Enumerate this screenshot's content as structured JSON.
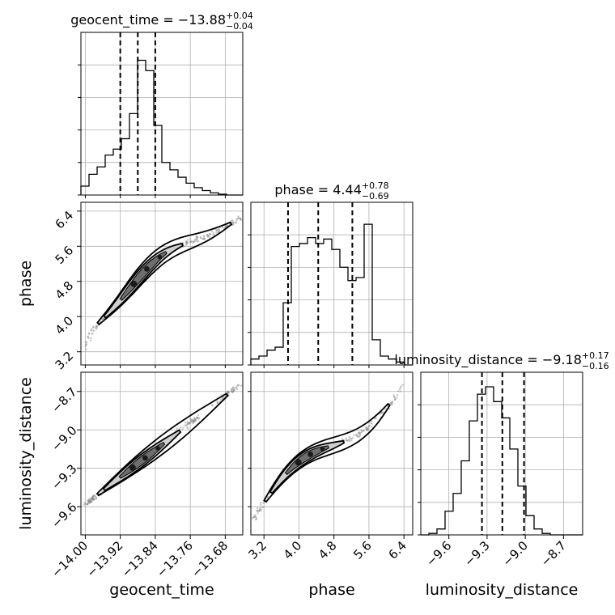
{
  "chart_data": {
    "type": "corner",
    "parameters": [
      "geocent_time",
      "phase",
      "luminosity_distance"
    ],
    "titles": [
      {
        "param": "geocent_time",
        "prefix": "geocent_time = ",
        "median": "−13.88",
        "plus": "+0.04",
        "minus": "−0.04"
      },
      {
        "param": "phase",
        "prefix": "phase = ",
        "median": "4.44",
        "plus": "+0.78",
        "minus": "−0.69"
      },
      {
        "param": "luminosity_distance",
        "prefix": "luminosity_distance = ",
        "median": "−9.18",
        "plus": "+0.17",
        "minus": "−0.16"
      }
    ],
    "axis_labels": {
      "x": [
        "geocent_time",
        "phase",
        "luminosity_distance"
      ],
      "y": [
        "phase",
        "luminosity_distance"
      ]
    },
    "ranges": {
      "geocent_time": [
        -14.01,
        -13.64
      ],
      "phase": [
        2.9,
        6.6
      ],
      "luminosity_distance": [
        -9.82,
        -8.55
      ]
    },
    "ticks": {
      "geocent_time": {
        "values": [
          -14.0,
          -13.92,
          -13.84,
          -13.76,
          -13.68
        ],
        "labels": [
          "−14.00",
          "−13.92",
          "−13.84",
          "−13.76",
          "−13.68"
        ]
      },
      "phase": {
        "values": [
          3.2,
          4.0,
          4.8,
          5.6,
          6.4
        ],
        "labels": [
          "3.2",
          "4.0",
          "4.8",
          "5.6",
          "6.4"
        ]
      },
      "luminosity_distance": {
        "values": [
          -9.6,
          -9.3,
          -9.0,
          -8.7
        ],
        "labels": [
          "−9.6",
          "−9.3",
          "−9.0",
          "−8.7"
        ]
      }
    },
    "quantiles": {
      "geocent_time": [
        -13.92,
        -13.88,
        -13.84
      ],
      "phase": [
        3.75,
        4.44,
        5.22
      ],
      "luminosity_distance": [
        -9.34,
        -9.18,
        -9.01
      ]
    },
    "histograms": {
      "geocent_time": [
        0.06,
        0.14,
        0.19,
        0.27,
        0.31,
        0.38,
        0.55,
        0.91,
        0.84,
        0.47,
        0.22,
        0.17,
        0.12,
        0.08,
        0.05,
        0.03,
        0.015,
        0.005,
        0,
        0
      ],
      "phase": [
        0.04,
        0.06,
        0.1,
        0.12,
        0.42,
        0.8,
        0.82,
        0.86,
        0.82,
        0.85,
        0.78,
        0.66,
        0.57,
        0.59,
        0.95,
        0.17,
        0.06,
        0.04,
        0.02,
        0
      ],
      "luminosity_distance": [
        0,
        0.01,
        0.04,
        0.16,
        0.28,
        0.5,
        0.77,
        0.95,
        1.0,
        0.9,
        0.79,
        0.58,
        0.33,
        0.13,
        0.04,
        0.01,
        0,
        0,
        0,
        0
      ]
    },
    "grid": true
  }
}
